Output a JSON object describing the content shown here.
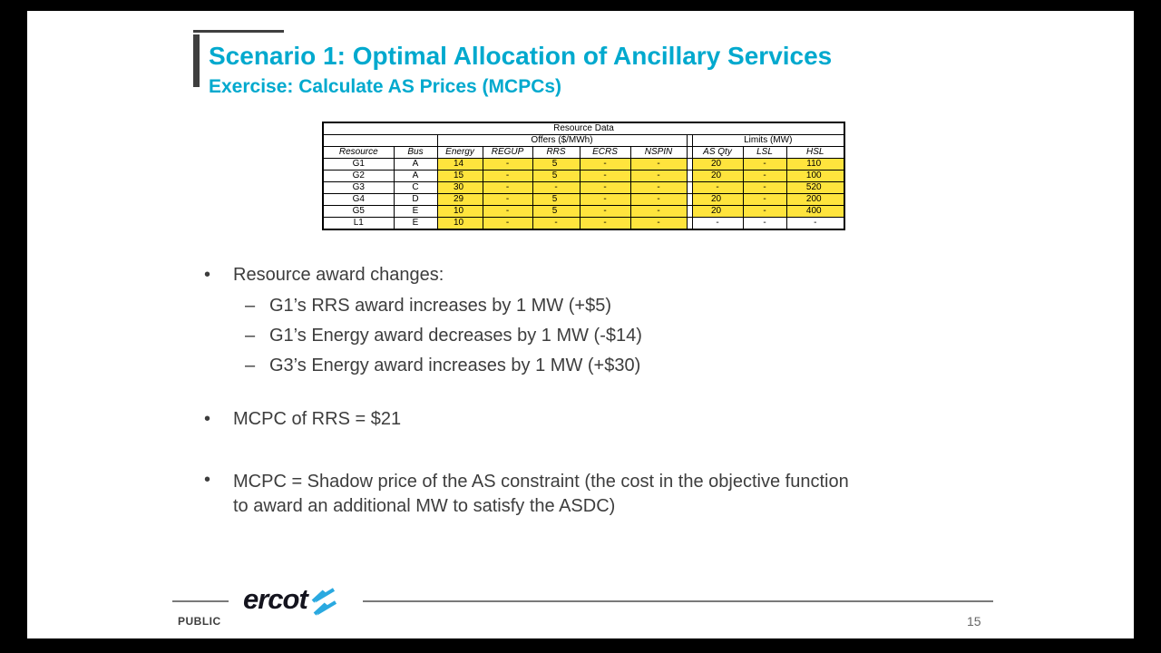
{
  "slide": {
    "title": "Scenario 1: Optimal Allocation of Ancillary Services",
    "subtitle": "Exercise: Calculate AS Prices (MCPCs)"
  },
  "table": {
    "title": "Resource Data",
    "group_offers": "Offers ($/MWh)",
    "group_limits": "Limits (MW)",
    "columns": [
      "Resource",
      "Bus",
      "Energy",
      "REGUP",
      "RRS",
      "ECRS",
      "NSPIN",
      "AS Qty",
      "LSL",
      "HSL"
    ],
    "rows": [
      {
        "cells": [
          "G1",
          "A",
          "14",
          "-",
          "5",
          "-",
          "-",
          "20",
          "-",
          "110"
        ],
        "highlight_offers": true,
        "highlight_limits": true
      },
      {
        "cells": [
          "G2",
          "A",
          "15",
          "-",
          "5",
          "-",
          "-",
          "20",
          "-",
          "100"
        ],
        "highlight_offers": true,
        "highlight_limits": true
      },
      {
        "cells": [
          "G3",
          "C",
          "30",
          "-",
          "-",
          "-",
          "-",
          "-",
          "-",
          "520"
        ],
        "highlight_offers": true,
        "highlight_limits": true
      },
      {
        "cells": [
          "G4",
          "D",
          "29",
          "-",
          "5",
          "-",
          "-",
          "20",
          "-",
          "200"
        ],
        "highlight_offers": true,
        "highlight_limits": true
      },
      {
        "cells": [
          "G5",
          "E",
          "10",
          "-",
          "5",
          "-",
          "-",
          "20",
          "-",
          "400"
        ],
        "highlight_offers": true,
        "highlight_limits": true
      },
      {
        "cells": [
          "L1",
          "E",
          "10",
          "-",
          "-",
          "-",
          "-",
          "-",
          "-",
          "-"
        ],
        "highlight_offers": true,
        "highlight_limits": false
      }
    ]
  },
  "bullets": {
    "bullet_char": "•",
    "dash_char": "–",
    "b1": "Resource award changes:",
    "sub_items": [
      "G1’s RRS award increases by 1 MW (+$5)",
      "G1’s Energy award decreases by 1 MW (-$14)",
      "G3’s Energy award increases by 1 MW (+$30)"
    ],
    "b2": "MCPC of RRS = $21",
    "b3_line1": "MCPC = Shadow price of the AS constraint (the cost in the objective function",
    "b3_line2": "to award an additional MW to satisfy the ASDC)"
  },
  "footer": {
    "classification": "PUBLIC",
    "logo_text": "ercot",
    "page_number": "15"
  },
  "colors": {
    "accent_teal": "#00a9ce",
    "highlight_yellow": "#ffe43d",
    "body_text": "#3d3d3d",
    "logo_bolt_blue": "#2aa9e0"
  }
}
